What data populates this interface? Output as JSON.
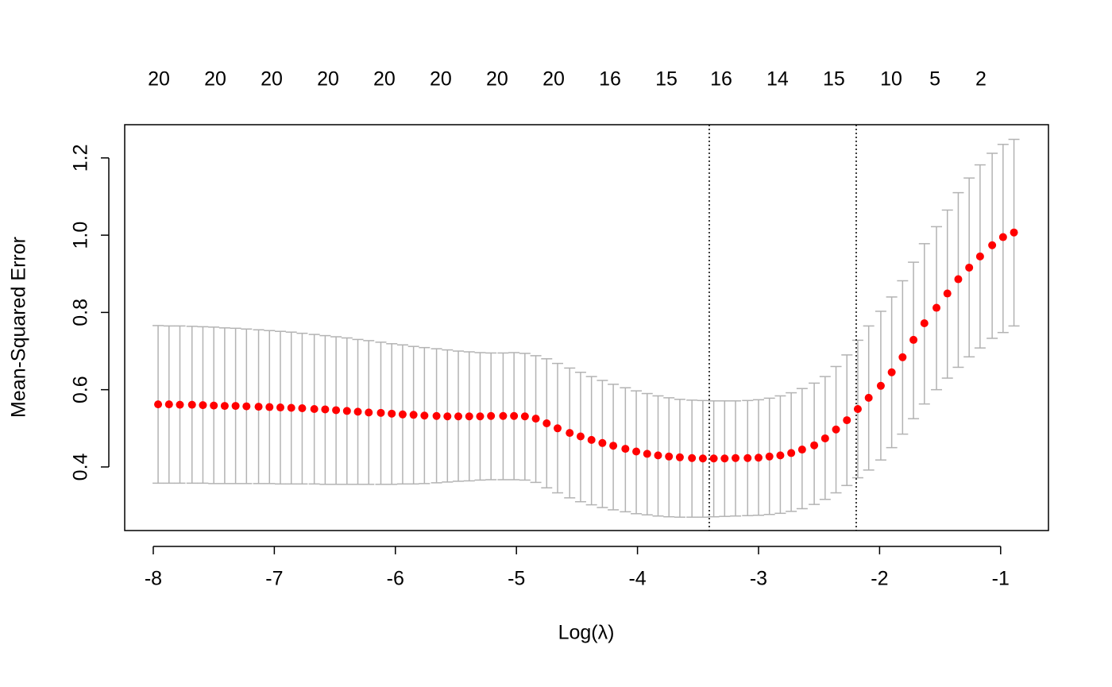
{
  "chart_data": {
    "type": "errorbar",
    "x_label": "Log(λ)",
    "y_label": "Mean-Squared Error",
    "xlim": [
      -8.236,
      -0.605
    ],
    "ylim": [
      0.2354,
      1.286
    ],
    "xticks": [
      -8,
      -7,
      -6,
      -5,
      -4,
      -3,
      -2,
      -1
    ],
    "yticks": [
      0.4,
      0.6,
      0.8,
      {
        "value": 1,
        "label": "1.0"
      },
      1.2
    ],
    "top_labels": [
      {
        "value": -7.954,
        "label": "20"
      },
      {
        "value": -7.488,
        "label": "20"
      },
      {
        "value": -7.022,
        "label": "20"
      },
      {
        "value": -6.556,
        "label": "20"
      },
      {
        "value": -6.091,
        "label": "20"
      },
      {
        "value": -5.625,
        "label": "20"
      },
      {
        "value": -5.159,
        "label": "20"
      },
      {
        "value": -4.693,
        "label": "20"
      },
      {
        "value": -4.227,
        "label": "16"
      },
      {
        "value": -3.761,
        "label": "15"
      },
      {
        "value": -3.308,
        "label": "16"
      },
      {
        "value": -2.843,
        "label": "14"
      },
      {
        "value": -2.377,
        "label": "15"
      },
      {
        "value": -1.904,
        "label": "10"
      },
      {
        "value": -1.543,
        "label": "5"
      },
      {
        "value": -1.163,
        "label": "2"
      }
    ],
    "vlines": [
      -3.407,
      -2.193
    ],
    "color": "#ff0000",
    "bar_color": "#b3b3b3",
    "x": [
      -7.96,
      -7.87,
      -7.78,
      -7.68,
      -7.59,
      -7.5,
      -7.41,
      -7.32,
      -7.23,
      -7.13,
      -7.04,
      -6.95,
      -6.86,
      -6.77,
      -6.67,
      -6.58,
      -6.49,
      -6.4,
      -6.31,
      -6.22,
      -6.12,
      -6.03,
      -5.94,
      -5.85,
      -5.76,
      -5.66,
      -5.57,
      -5.48,
      -5.39,
      -5.3,
      -5.21,
      -5.11,
      -5.02,
      -4.93,
      -4.84,
      -4.75,
      -4.66,
      -4.56,
      -4.47,
      -4.38,
      -4.29,
      -4.2,
      -4.1,
      -4.01,
      -3.92,
      -3.83,
      -3.74,
      -3.65,
      -3.55,
      -3.46,
      -3.37,
      -3.28,
      -3.19,
      -3.09,
      -3,
      -2.91,
      -2.82,
      -2.73,
      -2.64,
      -2.54,
      -2.45,
      -2.36,
      -2.27,
      -2.18,
      -2.09,
      -1.99,
      -1.9,
      -1.81,
      -1.72,
      -1.63,
      -1.53,
      -1.44,
      -1.35,
      -1.26,
      -1.17,
      -1.07,
      -0.98,
      -0.89
    ],
    "values": [
      0.562,
      0.562,
      0.561,
      0.561,
      0.56,
      0.559,
      0.558,
      0.558,
      0.557,
      0.556,
      0.555,
      0.554,
      0.553,
      0.552,
      0.55,
      0.549,
      0.547,
      0.545,
      0.543,
      0.541,
      0.54,
      0.538,
      0.536,
      0.535,
      0.533,
      0.532,
      0.531,
      0.531,
      0.531,
      0.531,
      0.532,
      0.532,
      0.532,
      0.531,
      0.525,
      0.513,
      0.5,
      0.488,
      0.479,
      0.47,
      0.462,
      0.455,
      0.447,
      0.44,
      0.434,
      0.43,
      0.427,
      0.425,
      0.423,
      0.422,
      0.422,
      0.422,
      0.423,
      0.423,
      0.424,
      0.427,
      0.43,
      0.436,
      0.445,
      0.456,
      0.474,
      0.497,
      0.521,
      0.55,
      0.579,
      0.61,
      0.645,
      0.684,
      0.729,
      0.772,
      0.812,
      0.849,
      0.886,
      0.916,
      0.945,
      0.974,
      0.995,
      1.007
    ],
    "upper": [
      0.766,
      0.765,
      0.765,
      0.764,
      0.763,
      0.762,
      0.76,
      0.759,
      0.757,
      0.755,
      0.753,
      0.751,
      0.749,
      0.746,
      0.743,
      0.74,
      0.737,
      0.734,
      0.73,
      0.727,
      0.723,
      0.719,
      0.716,
      0.712,
      0.709,
      0.706,
      0.703,
      0.7,
      0.698,
      0.696,
      0.695,
      0.695,
      0.696,
      0.694,
      0.688,
      0.68,
      0.668,
      0.656,
      0.645,
      0.634,
      0.624,
      0.614,
      0.605,
      0.597,
      0.59,
      0.584,
      0.579,
      0.575,
      0.573,
      0.572,
      0.571,
      0.571,
      0.571,
      0.572,
      0.574,
      0.578,
      0.584,
      0.592,
      0.603,
      0.617,
      0.634,
      0.66,
      0.69,
      0.728,
      0.765,
      0.803,
      0.84,
      0.882,
      0.93,
      0.978,
      1.022,
      1.065,
      1.11,
      1.148,
      1.182,
      1.212,
      1.235,
      1.248
    ],
    "lower": [
      0.358,
      0.358,
      0.358,
      0.358,
      0.358,
      0.357,
      0.357,
      0.357,
      0.357,
      0.357,
      0.357,
      0.356,
      0.356,
      0.356,
      0.356,
      0.355,
      0.355,
      0.355,
      0.355,
      0.355,
      0.355,
      0.355,
      0.356,
      0.356,
      0.357,
      0.359,
      0.361,
      0.363,
      0.364,
      0.366,
      0.367,
      0.367,
      0.367,
      0.366,
      0.36,
      0.346,
      0.333,
      0.32,
      0.31,
      0.302,
      0.295,
      0.289,
      0.284,
      0.279,
      0.276,
      0.273,
      0.271,
      0.27,
      0.27,
      0.27,
      0.271,
      0.272,
      0.273,
      0.274,
      0.275,
      0.277,
      0.28,
      0.285,
      0.292,
      0.303,
      0.316,
      0.333,
      0.352,
      0.372,
      0.392,
      0.418,
      0.45,
      0.485,
      0.525,
      0.563,
      0.6,
      0.63,
      0.658,
      0.685,
      0.708,
      0.733,
      0.748,
      0.765
    ]
  }
}
